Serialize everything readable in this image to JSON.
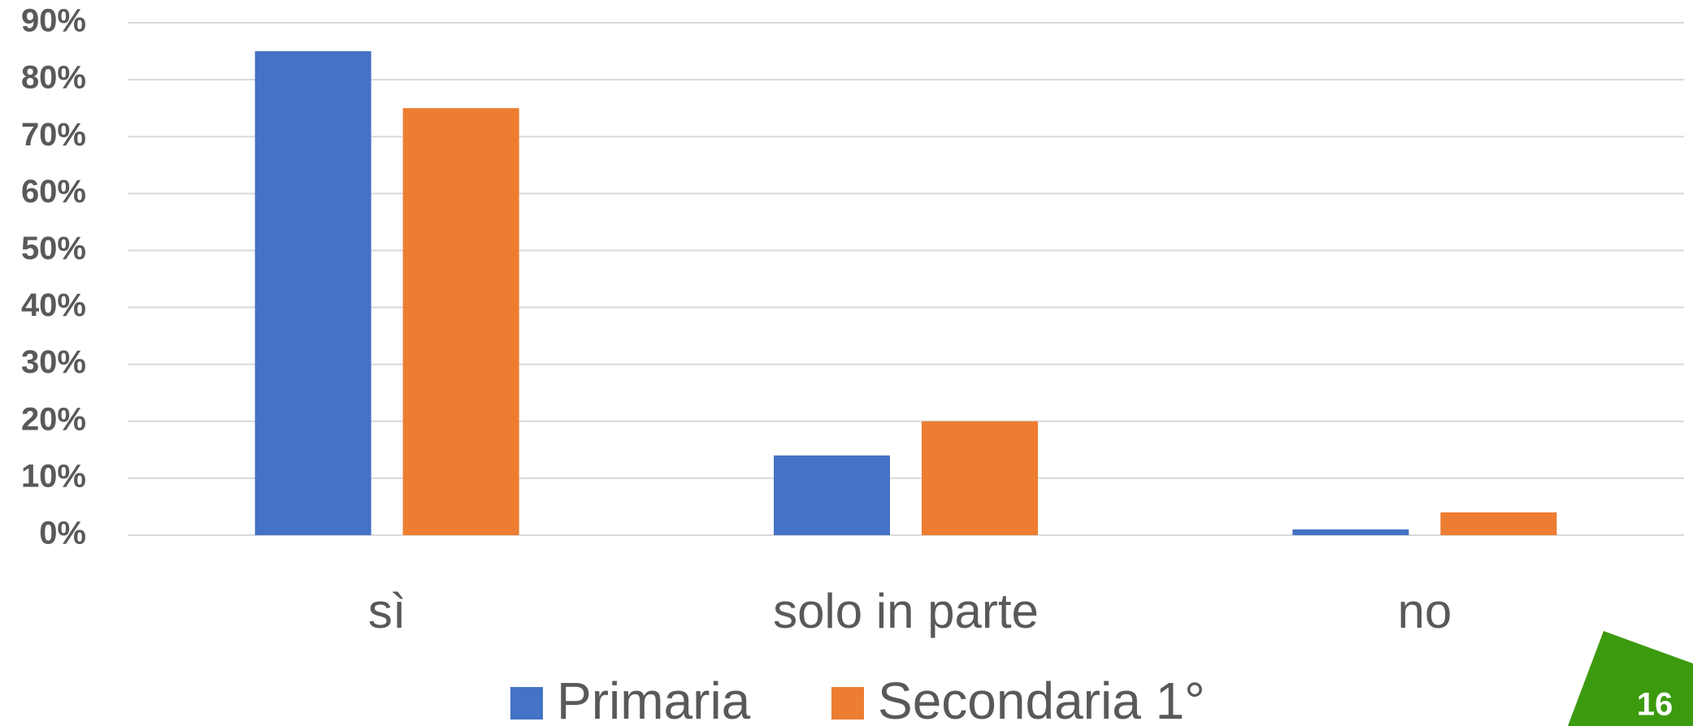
{
  "chart_data": {
    "type": "bar",
    "categories": [
      "sì",
      "solo in parte",
      "no"
    ],
    "series": [
      {
        "name": "Primaria",
        "color": "#4472c4",
        "values": [
          85,
          14,
          1
        ]
      },
      {
        "name": "Secondaria 1°",
        "color": "#ed7d31",
        "values": [
          75,
          20,
          4
        ]
      }
    ],
    "ylim": [
      0,
      90
    ],
    "yticks": [
      {
        "value": 0,
        "label": "0%"
      },
      {
        "value": 10,
        "label": "10%"
      },
      {
        "value": 20,
        "label": "20%"
      },
      {
        "value": 30,
        "label": "30%"
      },
      {
        "value": 40,
        "label": "40%"
      },
      {
        "value": 50,
        "label": "50%"
      },
      {
        "value": 60,
        "label": "60%"
      },
      {
        "value": 70,
        "label": "70%"
      },
      {
        "value": 80,
        "label": "80%"
      },
      {
        "value": 90,
        "label": "90%"
      }
    ],
    "grid": true,
    "legend": "bottom"
  },
  "slide_number": "16"
}
